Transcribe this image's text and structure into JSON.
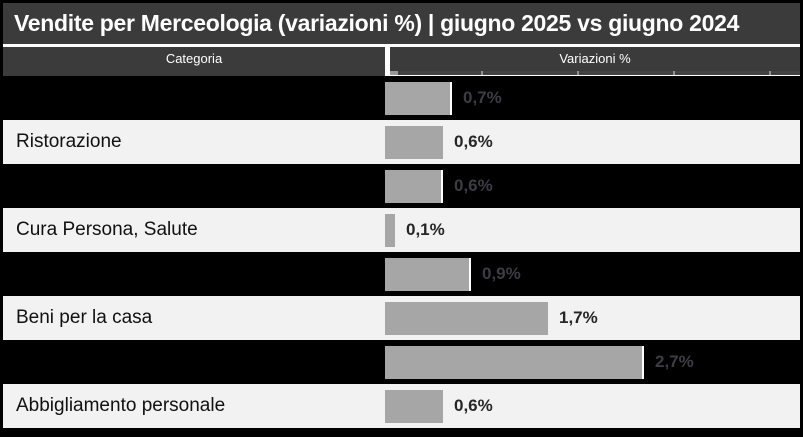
{
  "title": "Vendite per Merceologia (variazioni %) | giugno 2025 vs giugno 2024",
  "header": {
    "categoria": "Categoria",
    "variazioni": "Variazioni %"
  },
  "colors": {
    "charcoal_header": "#3B3B3B",
    "dark_row": "#000000",
    "light_row": "#F2F2F2",
    "bar": "#A6A6A6",
    "value_label_on_light": "#262626",
    "value_label_on_dark": "#3C3C44",
    "header_text": "#FFFFFF",
    "divider": "#FFFFFF"
  },
  "rows": [
    {
      "category": "",
      "value": 0.7,
      "label": "0,7%",
      "style": "dark"
    },
    {
      "category": "Ristorazione",
      "value": 0.6,
      "label": "0,6%",
      "style": "light"
    },
    {
      "category": "",
      "value": 0.6,
      "label": "0,6%",
      "style": "dark"
    },
    {
      "category": "Cura Persona, Salute",
      "value": 0.1,
      "label": "0,1%",
      "style": "light"
    },
    {
      "category": "",
      "value": 0.9,
      "label": "0,9%",
      "style": "dark"
    },
    {
      "category": "Beni per la casa",
      "value": 1.7,
      "label": "1,7%",
      "style": "light"
    },
    {
      "category": "",
      "value": 2.7,
      "label": "2,7%",
      "style": "dark"
    },
    {
      "category": "Abbigliamento personale",
      "value": 0.6,
      "label": "0,6%",
      "style": "light"
    }
  ],
  "chart_data": {
    "type": "bar",
    "orientation": "horizontal",
    "title": "Vendite per Merceologia (variazioni %) | giugno 2025 vs giugno 2024",
    "categories": [
      "",
      "Ristorazione",
      "",
      "Cura Persona, Salute",
      "",
      "Beni per la casa",
      "",
      "Abbigliamento personale"
    ],
    "values": [
      0.7,
      0.6,
      0.6,
      0.1,
      0.9,
      1.7,
      2.7,
      0.6
    ],
    "value_labels": [
      "0,7%",
      "0,6%",
      "0,6%",
      "0,1%",
      "0,9%",
      "1,7%",
      "2,7%",
      "0,6%"
    ],
    "xlabel": "Variazioni %",
    "ylabel": "Categoria",
    "xlim": [
      0,
      4.4
    ],
    "gridlines_x": [
      1,
      2,
      3,
      4
    ],
    "legend": "none",
    "note": "alternating black rows hide their category labels (black text on black fill)"
  }
}
